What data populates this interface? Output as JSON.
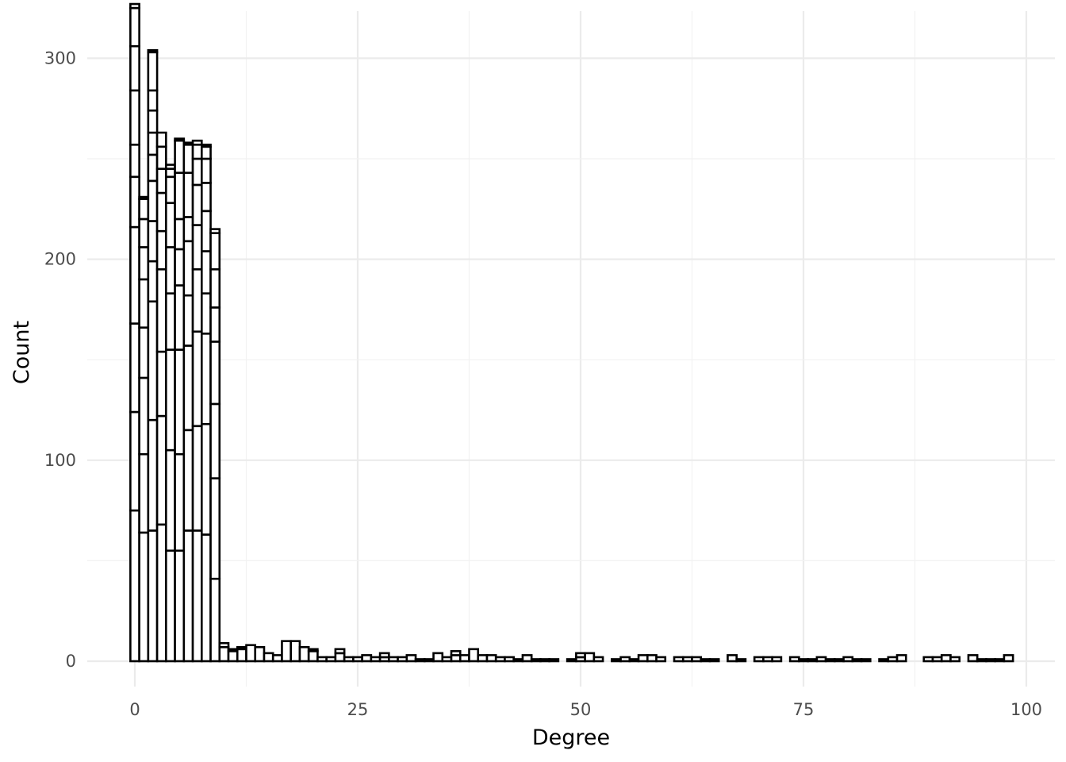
{
  "chart_data": {
    "type": "bar",
    "subtype": "stacked histogram",
    "title": "",
    "xlabel": "Degree",
    "ylabel": "Count",
    "xlim": [
      -2,
      102
    ],
    "ylim": [
      0,
      315
    ],
    "x_ticks": [
      0,
      25,
      50,
      75,
      100
    ],
    "x_tick_labels": [
      "0",
      "25",
      "50",
      "75",
      "100"
    ],
    "y_ticks": [
      0,
      100,
      200,
      300
    ],
    "y_tick_labels": [
      "0",
      "100",
      "200",
      "300"
    ],
    "grid": true,
    "legend": "none",
    "bar_fill": "#ffffff",
    "bar_outline": "#000000",
    "bin_width": 1,
    "stacked_bins": [
      {
        "x": 0,
        "segments": [
          75,
          49,
          44,
          48,
          25,
          16,
          27,
          22,
          19,
          2
        ]
      },
      {
        "x": 1,
        "segments": [
          64,
          39,
          38,
          25,
          24,
          16,
          14,
          10,
          1
        ]
      },
      {
        "x": 2,
        "segments": [
          65,
          55,
          59,
          20,
          20,
          20,
          13,
          11,
          11,
          10,
          19,
          1
        ]
      },
      {
        "x": 3,
        "segments": [
          68,
          54,
          32,
          41,
          19,
          19,
          12,
          11,
          7
        ]
      },
      {
        "x": 4,
        "segments": [
          55,
          50,
          50,
          28,
          23,
          22,
          13,
          4,
          2
        ]
      },
      {
        "x": 5,
        "segments": [
          55,
          48,
          52,
          32,
          18,
          15,
          23,
          16,
          1
        ]
      },
      {
        "x": 6,
        "segments": [
          65,
          50,
          42,
          25,
          27,
          12,
          22,
          14,
          1
        ]
      },
      {
        "x": 7,
        "segments": [
          65,
          52,
          47,
          31,
          22,
          20,
          13,
          7,
          2
        ]
      },
      {
        "x": 8,
        "segments": [
          63,
          55,
          45,
          20,
          21,
          20,
          14,
          12,
          6,
          1
        ]
      },
      {
        "x": 9,
        "segments": [
          41,
          50,
          37,
          31,
          17,
          19,
          18,
          2
        ]
      },
      {
        "x": 10,
        "segments": [
          7,
          2
        ]
      },
      {
        "x": 11,
        "segments": [
          5,
          1
        ]
      },
      {
        "x": 12,
        "segments": [
          6,
          1
        ]
      },
      {
        "x": 13,
        "segments": [
          8
        ]
      },
      {
        "x": 14,
        "segments": [
          7
        ]
      },
      {
        "x": 15,
        "segments": [
          4
        ]
      },
      {
        "x": 16,
        "segments": [
          3
        ]
      },
      {
        "x": 17,
        "segments": [
          10
        ]
      },
      {
        "x": 18,
        "segments": [
          10
        ]
      },
      {
        "x": 19,
        "segments": [
          7
        ]
      },
      {
        "x": 20,
        "segments": [
          5,
          1
        ]
      },
      {
        "x": 21,
        "segments": [
          2
        ]
      },
      {
        "x": 22,
        "segments": [
          2
        ]
      },
      {
        "x": 23,
        "segments": [
          4,
          2
        ]
      },
      {
        "x": 24,
        "segments": [
          2
        ]
      },
      {
        "x": 25,
        "segments": [
          2
        ]
      },
      {
        "x": 26,
        "segments": [
          3
        ]
      },
      {
        "x": 27,
        "segments": [
          2
        ]
      },
      {
        "x": 28,
        "segments": [
          2,
          2
        ]
      },
      {
        "x": 29,
        "segments": [
          2
        ]
      },
      {
        "x": 30,
        "segments": [
          2
        ]
      },
      {
        "x": 31,
        "segments": [
          3
        ]
      },
      {
        "x": 32,
        "segments": [
          1
        ]
      },
      {
        "x": 33,
        "segments": [
          1
        ]
      },
      {
        "x": 34,
        "segments": [
          4
        ]
      },
      {
        "x": 35,
        "segments": [
          2
        ]
      },
      {
        "x": 36,
        "segments": [
          3,
          2
        ]
      },
      {
        "x": 37,
        "segments": [
          3
        ]
      },
      {
        "x": 38,
        "segments": [
          6
        ]
      },
      {
        "x": 39,
        "segments": [
          3
        ]
      },
      {
        "x": 40,
        "segments": [
          3
        ]
      },
      {
        "x": 41,
        "segments": [
          2
        ]
      },
      {
        "x": 42,
        "segments": [
          2
        ]
      },
      {
        "x": 43,
        "segments": [
          1
        ]
      },
      {
        "x": 44,
        "segments": [
          3
        ]
      },
      {
        "x": 45,
        "segments": [
          1
        ]
      },
      {
        "x": 46,
        "segments": [
          1
        ]
      },
      {
        "x": 47,
        "segments": [
          1
        ]
      },
      {
        "x": 49,
        "segments": [
          1
        ]
      },
      {
        "x": 50,
        "segments": [
          2,
          2
        ]
      },
      {
        "x": 51,
        "segments": [
          4
        ]
      },
      {
        "x": 52,
        "segments": [
          2
        ]
      },
      {
        "x": 54,
        "segments": [
          1
        ]
      },
      {
        "x": 55,
        "segments": [
          2
        ]
      },
      {
        "x": 56,
        "segments": [
          1
        ]
      },
      {
        "x": 57,
        "segments": [
          3
        ]
      },
      {
        "x": 58,
        "segments": [
          3
        ]
      },
      {
        "x": 59,
        "segments": [
          2
        ]
      },
      {
        "x": 61,
        "segments": [
          2
        ]
      },
      {
        "x": 62,
        "segments": [
          2
        ]
      },
      {
        "x": 63,
        "segments": [
          2
        ]
      },
      {
        "x": 64,
        "segments": [
          1
        ]
      },
      {
        "x": 65,
        "segments": [
          1
        ]
      },
      {
        "x": 67,
        "segments": [
          3
        ]
      },
      {
        "x": 68,
        "segments": [
          1
        ]
      },
      {
        "x": 70,
        "segments": [
          2
        ]
      },
      {
        "x": 71,
        "segments": [
          2
        ]
      },
      {
        "x": 72,
        "segments": [
          2
        ]
      },
      {
        "x": 74,
        "segments": [
          2
        ]
      },
      {
        "x": 75,
        "segments": [
          1
        ]
      },
      {
        "x": 76,
        "segments": [
          1
        ]
      },
      {
        "x": 77,
        "segments": [
          2
        ]
      },
      {
        "x": 78,
        "segments": [
          1
        ]
      },
      {
        "x": 79,
        "segments": [
          1
        ]
      },
      {
        "x": 80,
        "segments": [
          2
        ]
      },
      {
        "x": 81,
        "segments": [
          1
        ]
      },
      {
        "x": 82,
        "segments": [
          1
        ]
      },
      {
        "x": 84,
        "segments": [
          1
        ]
      },
      {
        "x": 85,
        "segments": [
          2
        ]
      },
      {
        "x": 86,
        "segments": [
          3
        ]
      },
      {
        "x": 89,
        "segments": [
          2
        ]
      },
      {
        "x": 90,
        "segments": [
          2
        ]
      },
      {
        "x": 91,
        "segments": [
          3
        ]
      },
      {
        "x": 92,
        "segments": [
          2
        ]
      },
      {
        "x": 94,
        "segments": [
          3
        ]
      },
      {
        "x": 95,
        "segments": [
          1
        ]
      },
      {
        "x": 96,
        "segments": [
          1
        ]
      },
      {
        "x": 97,
        "segments": [
          1
        ]
      },
      {
        "x": 98,
        "segments": [
          3
        ]
      }
    ]
  }
}
